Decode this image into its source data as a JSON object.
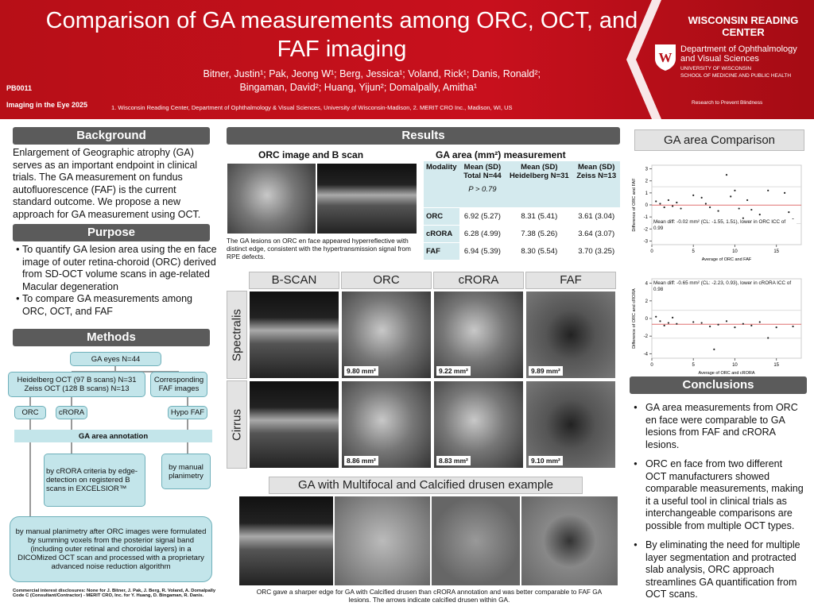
{
  "header": {
    "title": "Comparison of GA measurements among ORC, OCT, and FAF imaging",
    "authors_line1": "Bitner, Justin¹; Pak, Jeong W¹; Berg, Jessica¹; Voland, Rick¹; Danis, Ronald²;",
    "authors_line2": "Bingaman, David²; Huang, Yijun²; Domalpally, Amitha¹",
    "poster_id": "PB0011",
    "conference": "Imaging in the Eye 2025",
    "affiliations": "1.   Wisconsin Reading Center, Department of Ophthalmology & Visual Sciences, University of Wisconsin-Madison, 2. MERIT CRO Inc., Madison, WI, US",
    "center": "WISCONSIN READING CENTER",
    "department": "Department of Ophthalmology and Visual Sciences",
    "university": "UNIVERSITY OF WISCONSIN",
    "school": "SCHOOL OF MEDICINE AND PUBLIC HEALTH",
    "sponsor": "Research to Prevent Blindness"
  },
  "background": {
    "heading": "Background",
    "text": "Enlargement of Geographic atrophy (GA) serves as an important endpoint in clinical trials. The GA measurement on fundus autofluorescence (FAF) is the current standard outcome. We propose a new approach for GA measurement using OCT."
  },
  "purpose": {
    "heading": "Purpose",
    "items": [
      "To quantify GA lesion area using the en face image of outer retina-choroid (ORC) derived from SD-OCT volume scans in age-related Macular degeneration",
      "To compare GA measurements among ORC, OCT, and FAF"
    ]
  },
  "methods": {
    "heading": "Methods",
    "nodes": [
      "GA eyes N=44",
      "Heidelberg OCT (97 B scans) N=31 Zeiss OCT (128 B scans) N=13",
      "Corresponding FAF images",
      "ORC",
      "cRORA",
      "Hypo FAF",
      "GA area annotation",
      "by cRORA criteria by edge-detection on registered B scans in EXCELSIOR™",
      "by manual planimetry",
      "by manual planimetry after ORC images were formulated by summing voxels from the posterior signal band (including outer retinal and choroidal layers) in a DICOMized OCT scan and processed with a proprietary advanced noise reduction algorithm"
    ],
    "disclosure": "Commercial interest disclosures: None for J. Bitner, J. Pak, J. Berg, R. Voland, A. Domalpally Code C (Consultant/Contractor) - MERIT CRO, Inc. for Y. Huang, D. Bingaman, R. Danis."
  },
  "results": {
    "heading": "Results",
    "image_title": "ORC image and B scan",
    "image_caption": "The GA lesions on ORC en face appeared hyperreflective with distinct edge, consistent with the hypertransmission signal from RPE defects.",
    "table_title": "GA area (mm²) measurement",
    "table": {
      "header": [
        "Modality",
        "Mean (SD) Total N=44",
        "Mean (SD) Heidelberg N=31",
        "Mean (SD) Zeiss N=13"
      ],
      "p_value": "P > 0.79",
      "rows": [
        [
          "ORC",
          "6.92 (5.27)",
          "8.31 (5.41)",
          "3.61 (3.04)"
        ],
        [
          "cRORA",
          "6.28 (4.99)",
          "7.38 (5.26)",
          "3.64 (3.07)"
        ],
        [
          "FAF",
          "6.94 (5.39)",
          "8.30 (5.54)",
          "3.70 (3.25)"
        ]
      ]
    },
    "grid": {
      "columns": [
        "B-SCAN",
        "ORC",
        "cRORA",
        "FAF"
      ],
      "rows": [
        "Spectralis",
        "Cirrus"
      ],
      "areas": [
        [
          "9.80 mm²",
          "9.22 mm²",
          "9.89 mm²"
        ],
        [
          "8.86 mm²",
          "8.83 mm²",
          "9.10 mm²"
        ]
      ]
    },
    "multifocal_title": "GA with Multifocal and Calcified drusen example",
    "multifocal_caption": "ORC gave a sharper edge for GA with Calcified drusen than cRORA  annotation and was better comparable to FAF GA lesions. The arrows indicate calcified drusen within GA."
  },
  "comparison": {
    "heading": "GA area Comparison",
    "plots": [
      {
        "y_label": "Difference of ORC and FAF",
        "x_label": "Average of ORC and FAF",
        "note": "Mean diff: -0.02 mm² (CL: -1.55, 1.51), lower in ORC ICC of 0.99",
        "mean": -0.02,
        "limits": [
          -1.55,
          1.51
        ],
        "xlim": [
          0,
          18
        ],
        "ylim": [
          -3.3,
          3.3
        ],
        "xticks": [
          0,
          5,
          10,
          15
        ],
        "yticks": [
          3,
          2,
          1,
          0,
          -1,
          -2,
          -3
        ],
        "x": [
          0.5,
          1,
          1.5,
          2,
          2.5,
          3,
          3.5,
          5,
          6,
          6.5,
          7,
          8,
          9,
          9.5,
          10,
          10.5,
          11,
          11.5,
          12,
          13,
          14,
          16,
          16.5,
          17
        ],
        "y": [
          0.3,
          0.1,
          -0.2,
          0.4,
          -0.1,
          0.2,
          -0.3,
          0.8,
          0.6,
          0.1,
          -0.2,
          -0.5,
          2.5,
          0.7,
          1.2,
          -0.3,
          -1.1,
          0.4,
          -0.4,
          -0.8,
          1.2,
          1,
          -0.6,
          -1.2
        ]
      },
      {
        "y_label": "Difference of ORC and cRORA",
        "x_label": "Average of ORC and cRORA",
        "note": "Mean diff: -0.65 mm² (CL: -2.23, 0.93), lower in cRORA ICC of 0.98",
        "mean": -0.65,
        "limits": [
          -2.23,
          0.93
        ],
        "xlim": [
          0,
          18
        ],
        "ylim": [
          -4.5,
          4.5
        ],
        "xticks": [
          0,
          5,
          10,
          15
        ],
        "yticks": [
          4,
          2,
          0,
          -2,
          -4
        ],
        "x": [
          0.5,
          1,
          1.5,
          2,
          2.5,
          3,
          5,
          6,
          7,
          7.5,
          8,
          9,
          10,
          11,
          12,
          13,
          14,
          15,
          17
        ],
        "y": [
          0.2,
          -0.3,
          -0.8,
          -0.5,
          0.1,
          -0.6,
          -0.4,
          -0.5,
          -0.9,
          -3.5,
          -0.7,
          -0.3,
          -1,
          -0.6,
          -0.8,
          -0.4,
          -2.2,
          -1,
          -0.9
        ]
      }
    ]
  },
  "conclusions": {
    "heading": "Conclusions",
    "items": [
      "GA area measurements from ORC en face were comparable to GA lesions from FAF and cRORA lesions.",
      "ORC en face from two different OCT manufacturers showed comparable measurements, making it a useful tool in clinical trials as interchangeable comparisons are possible from multiple OCT types.",
      "By eliminating the need for multiple layer segmentation and protracted slab analysis, ORC approach streamlines GA quantification from OCT scans."
    ]
  }
}
